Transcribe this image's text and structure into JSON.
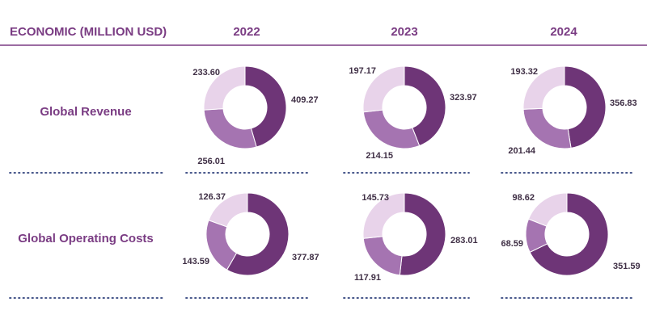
{
  "header": {
    "title": "ECONOMIC (MILLION USD)",
    "years": [
      "2022",
      "2023",
      "2024"
    ]
  },
  "rows": [
    "Global Revenue",
    "Global Operating Costs"
  ],
  "colors": {
    "dark": "#6e3577",
    "mid": "#a574b1",
    "light": "#e8d3ea",
    "accent": "#7a3c83",
    "dots": "#2d3f7a"
  },
  "chart_data": [
    {
      "type": "pie",
      "row": "Global Revenue",
      "column": "2022",
      "values": [
        409.27,
        256.01,
        233.6
      ],
      "labels": [
        "409.27",
        "256.01",
        "233.60"
      ]
    },
    {
      "type": "pie",
      "row": "Global Revenue",
      "column": "2023",
      "values": [
        323.97,
        214.15,
        197.17
      ],
      "labels": [
        "323.97",
        "214.15",
        "197.17"
      ]
    },
    {
      "type": "pie",
      "row": "Global Revenue",
      "column": "2024",
      "values": [
        356.83,
        201.44,
        193.32
      ],
      "labels": [
        "356.83",
        "201.44",
        "193.32"
      ]
    },
    {
      "type": "pie",
      "row": "Global Operating Costs",
      "column": "2022",
      "values": [
        377.87,
        143.59,
        126.37
      ],
      "labels": [
        "377.87",
        "143.59",
        "126.37"
      ]
    },
    {
      "type": "pie",
      "row": "Global Operating Costs",
      "column": "2023",
      "values": [
        283.01,
        117.91,
        145.73
      ],
      "labels": [
        "283.01",
        "117.91",
        "145.73"
      ]
    },
    {
      "type": "pie",
      "row": "Global Operating Costs",
      "column": "2024",
      "values": [
        351.59,
        68.59,
        98.62
      ],
      "labels": [
        "351.59",
        "68.59",
        "98.62"
      ]
    }
  ]
}
